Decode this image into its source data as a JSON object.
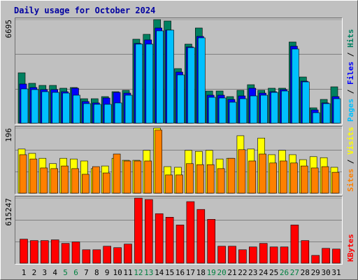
{
  "chart_data": [
    {
      "type": "bar",
      "title": "Daily usage for October 2024",
      "ylim": [
        0,
        6695
      ],
      "yticks": [
        6695
      ],
      "legend_separator": " / ",
      "series": [
        {
          "name": "Hits",
          "color": "#008060",
          "values": [
            3257,
            2579,
            2443,
            2443,
            2262,
            2307,
            1583,
            1583,
            1719,
            2036,
            2126,
            5429,
            5745,
            6695,
            6605,
            3529,
            5112,
            6153,
            2081,
            2081,
            1719,
            2126,
            2488,
            2126,
            2262,
            2262,
            5248,
            2986,
            995,
            1538,
            2352
          ]
        },
        {
          "name": "Files",
          "color": "#0000ff",
          "values": [
            2533,
            2307,
            2172,
            2172,
            2036,
            2262,
            1402,
            1312,
            1629,
            1991,
            1945,
            5157,
            5384,
            6153,
            6017,
            3303,
            4931,
            5610,
            1810,
            1810,
            1538,
            1764,
            2262,
            1945,
            2036,
            2172,
            4976,
            2714,
            860,
            1312,
            1719
          ]
        },
        {
          "name": "Pages",
          "color": "#00c0ff",
          "values": [
            2217,
            2172,
            2036,
            1991,
            1945,
            1810,
            1267,
            1221,
            1221,
            1312,
            1810,
            5112,
            5112,
            5972,
            6017,
            3122,
            4886,
            5519,
            1674,
            1629,
            1357,
            1583,
            1764,
            1810,
            1991,
            2081,
            4795,
            2669,
            679,
            1267,
            1583
          ]
        }
      ]
    },
    {
      "type": "bar",
      "ylim": [
        0,
        196
      ],
      "yticks": [
        196
      ],
      "legend_separator": " / ",
      "series": [
        {
          "name": "Visits",
          "color": "#ffff00",
          "values": [
            133,
            120,
            105,
            89,
            105,
            103,
            97,
            74,
            82,
            105,
            99,
            99,
            129,
            196,
            80,
            78,
            129,
            126,
            129,
            103,
            105,
            173,
            133,
            166,
            116,
            129,
            116,
            101,
            110,
            107,
            78
          ]
        },
        {
          "name": "Sites",
          "color": "#ff8000",
          "values": [
            116,
            103,
            76,
            74,
            82,
            74,
            57,
            80,
            61,
            118,
            97,
            97,
            97,
            190,
            55,
            55,
            89,
            86,
            86,
            74,
            105,
            131,
            97,
            118,
            91,
            97,
            91,
            82,
            76,
            80,
            63
          ]
        }
      ]
    },
    {
      "type": "bar",
      "ylim": [
        0,
        615247
      ],
      "yticks": [
        615247
      ],
      "categories": [
        "1",
        "2",
        "3",
        "4",
        "5",
        "6",
        "7",
        "8",
        "9",
        "10",
        "11",
        "12",
        "13",
        "14",
        "15",
        "16",
        "17",
        "18",
        "19",
        "20",
        "21",
        "22",
        "23",
        "24",
        "25",
        "26",
        "27",
        "28",
        "29",
        "30",
        "31"
      ],
      "category_colors": [
        "#000000",
        "#000000",
        "#000000",
        "#000000",
        "#008040",
        "#008040",
        "#000000",
        "#000000",
        "#000000",
        "#000000",
        "#000000",
        "#008040",
        "#008040",
        "#000000",
        "#000000",
        "#000000",
        "#000000",
        "#000000",
        "#008040",
        "#008040",
        "#000000",
        "#000000",
        "#000000",
        "#000000",
        "#000000",
        "#008040",
        "#008040",
        "#000000",
        "#000000",
        "#000000",
        "#000000"
      ],
      "series": [
        {
          "name": "KBytes",
          "color": "#ff0000",
          "values": [
            227400,
            214000,
            214000,
            220700,
            187200,
            200600,
            127100,
            127100,
            160500,
            147100,
            180600,
            615247,
            601800,
            468100,
            434700,
            361100,
            581800,
            508200,
            414600,
            160500,
            160500,
            127100,
            153800,
            187200,
            153800,
            153800,
            361100,
            214000,
            73600,
            140400,
            133700
          ]
        }
      ]
    }
  ]
}
